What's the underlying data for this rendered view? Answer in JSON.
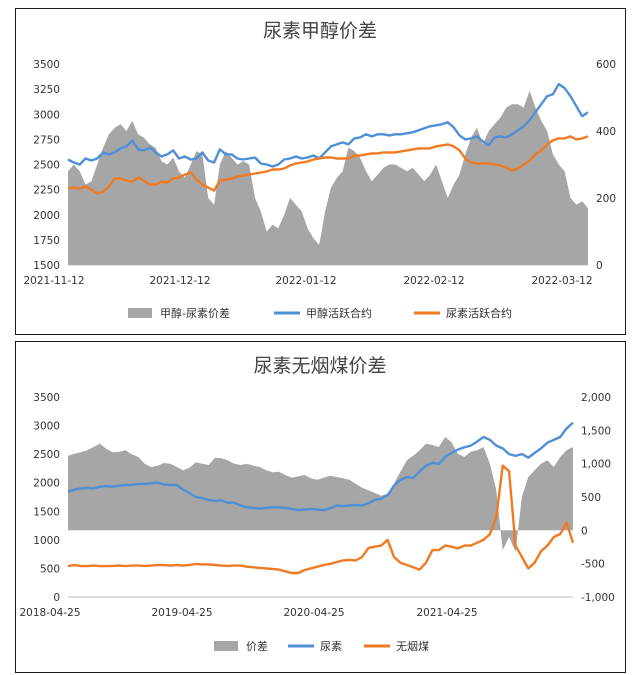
{
  "colors": {
    "spread": "#a6a6a6",
    "blue": "#4f8fd8",
    "orange": "#ef7a22",
    "axis": "#bfbfbf"
  },
  "chart_data": [
    {
      "type": "line",
      "title": "尿素甲醇价差",
      "x_ticks": [
        "2021-11-12",
        "2021-12-12",
        "2022-01-12",
        "2022-02-12",
        "2022-03-12"
      ],
      "y_left_ticks": [
        "1500",
        "1750",
        "2000",
        "2250",
        "2500",
        "2750",
        "3000",
        "3250",
        "3500"
      ],
      "y_right_ticks": [
        "0",
        "200",
        "400",
        "600"
      ],
      "ylim_left": [
        1500,
        3500
      ],
      "ylim_right": [
        0,
        600
      ],
      "legend": [
        "甲醇-尿素价差",
        "甲醇活跃合约",
        "尿素活跃合约"
      ],
      "series": [
        {
          "name": "甲醇-尿素价差",
          "axis": "right",
          "kind": "area",
          "values": [
            280,
            300,
            280,
            240,
            250,
            300,
            350,
            390,
            410,
            420,
            400,
            430,
            390,
            380,
            360,
            350,
            310,
            300,
            320,
            280,
            260,
            300,
            340,
            330,
            200,
            180,
            300,
            340,
            320,
            300,
            310,
            300,
            200,
            160,
            100,
            120,
            110,
            150,
            200,
            180,
            160,
            110,
            80,
            60,
            160,
            230,
            260,
            280,
            350,
            340,
            320,
            280,
            250,
            270,
            290,
            300,
            300,
            290,
            280,
            290,
            270,
            250,
            270,
            300,
            250,
            200,
            240,
            270,
            330,
            380,
            410,
            360,
            400,
            420,
            440,
            470,
            480,
            480,
            470,
            520,
            470,
            430,
            400,
            330,
            300,
            280,
            200,
            180,
            190,
            170
          ]
        },
        {
          "name": "甲醇活跃合约",
          "axis": "left",
          "kind": "line",
          "values": [
            2550,
            2520,
            2500,
            2560,
            2540,
            2560,
            2620,
            2600,
            2620,
            2660,
            2680,
            2740,
            2650,
            2640,
            2670,
            2620,
            2580,
            2600,
            2640,
            2560,
            2580,
            2550,
            2560,
            2620,
            2540,
            2520,
            2650,
            2600,
            2600,
            2560,
            2550,
            2560,
            2570,
            2510,
            2500,
            2480,
            2500,
            2550,
            2560,
            2580,
            2560,
            2570,
            2590,
            2560,
            2620,
            2680,
            2700,
            2720,
            2700,
            2760,
            2770,
            2800,
            2780,
            2800,
            2800,
            2790,
            2800,
            2800,
            2810,
            2820,
            2840,
            2860,
            2880,
            2890,
            2900,
            2920,
            2870,
            2790,
            2750,
            2760,
            2780,
            2730,
            2690,
            2770,
            2780,
            2770,
            2800,
            2840,
            2880,
            2940,
            3020,
            3100,
            3180,
            3200,
            3300,
            3260,
            3180,
            3080,
            2980,
            3020
          ]
        },
        {
          "name": "尿素活跃合约",
          "axis": "left",
          "kind": "line",
          "values": [
            2260,
            2270,
            2260,
            2280,
            2250,
            2210,
            2230,
            2280,
            2360,
            2360,
            2340,
            2330,
            2370,
            2340,
            2300,
            2300,
            2330,
            2320,
            2360,
            2370,
            2400,
            2420,
            2350,
            2300,
            2270,
            2240,
            2340,
            2350,
            2360,
            2380,
            2390,
            2400,
            2410,
            2420,
            2430,
            2450,
            2450,
            2460,
            2490,
            2510,
            2520,
            2530,
            2550,
            2560,
            2570,
            2570,
            2560,
            2560,
            2560,
            2590,
            2590,
            2600,
            2610,
            2610,
            2620,
            2620,
            2620,
            2630,
            2640,
            2650,
            2660,
            2660,
            2660,
            2680,
            2690,
            2700,
            2680,
            2640,
            2560,
            2520,
            2510,
            2510,
            2510,
            2500,
            2490,
            2470,
            2440,
            2460,
            2500,
            2540,
            2600,
            2640,
            2700,
            2740,
            2760,
            2760,
            2780,
            2750,
            2760,
            2780
          ]
        }
      ]
    },
    {
      "type": "line",
      "title": "尿素无烟煤价差",
      "x_ticks": [
        "2018-04-25",
        "2019-04-25",
        "2020-04-25",
        "2021-04-25"
      ],
      "y_left_ticks": [
        "0",
        "500",
        "1000",
        "1500",
        "2000",
        "2500",
        "3000",
        "3500"
      ],
      "y_right_ticks": [
        "-1,000",
        "-500",
        "0",
        "500",
        "1,000",
        "1,500",
        "2,000"
      ],
      "ylim_left": [
        0,
        3500
      ],
      "ylim_right": [
        -1000,
        2000
      ],
      "legend": [
        "价差",
        "尿素",
        "无烟煤"
      ],
      "series": [
        {
          "name": "价差",
          "axis": "right",
          "kind": "area",
          "values": [
            1120,
            1150,
            1170,
            1200,
            1250,
            1300,
            1220,
            1170,
            1180,
            1200,
            1140,
            1100,
            1000,
            950,
            970,
            1010,
            1000,
            950,
            900,
            940,
            1020,
            1000,
            980,
            1090,
            1080,
            1050,
            1000,
            980,
            1000,
            970,
            950,
            900,
            870,
            880,
            830,
            790,
            810,
            830,
            780,
            760,
            790,
            820,
            800,
            780,
            760,
            700,
            640,
            600,
            560,
            520,
            550,
            700,
            880,
            1050,
            1120,
            1200,
            1300,
            1280,
            1250,
            1400,
            1320,
            1150,
            1100,
            1180,
            1200,
            1250,
            1000,
            600,
            -300,
            -100,
            -320,
            500,
            800,
            900,
            1000,
            1050,
            950,
            1100,
            1200,
            1250
          ]
        },
        {
          "name": "尿素",
          "axis": "left",
          "kind": "line",
          "values": [
            1840,
            1880,
            1900,
            1910,
            1900,
            1930,
            1940,
            1930,
            1950,
            1960,
            1960,
            1980,
            1980,
            1990,
            2000,
            1970,
            1960,
            1960,
            1880,
            1820,
            1750,
            1730,
            1700,
            1680,
            1690,
            1650,
            1650,
            1600,
            1570,
            1560,
            1550,
            1560,
            1570,
            1570,
            1560,
            1540,
            1520,
            1530,
            1540,
            1530,
            1520,
            1550,
            1600,
            1590,
            1600,
            1610,
            1600,
            1640,
            1700,
            1720,
            1780,
            1950,
            2050,
            2100,
            2080,
            2200,
            2300,
            2350,
            2330,
            2450,
            2520,
            2580,
            2620,
            2650,
            2720,
            2800,
            2750,
            2650,
            2600,
            2500,
            2470,
            2500,
            2440,
            2520,
            2600,
            2700,
            2750,
            2800,
            2950,
            3050
          ]
        },
        {
          "name": "无烟煤",
          "axis": "left",
          "kind": "line",
          "values": [
            540,
            560,
            540,
            540,
            550,
            540,
            540,
            545,
            550,
            540,
            550,
            550,
            545,
            550,
            560,
            560,
            550,
            560,
            550,
            560,
            580,
            570,
            570,
            560,
            550,
            545,
            550,
            550,
            530,
            520,
            510,
            500,
            490,
            480,
            450,
            420,
            420,
            470,
            500,
            530,
            560,
            580,
            610,
            640,
            650,
            640,
            700,
            860,
            880,
            900,
            1000,
            700,
            600,
            560,
            520,
            480,
            600,
            820,
            820,
            900,
            880,
            850,
            900,
            900,
            950,
            1000,
            1100,
            1400,
            2300,
            2200,
            900,
            700,
            500,
            600,
            800,
            900,
            1050,
            1100,
            1300,
            950
          ]
        }
      ]
    }
  ]
}
